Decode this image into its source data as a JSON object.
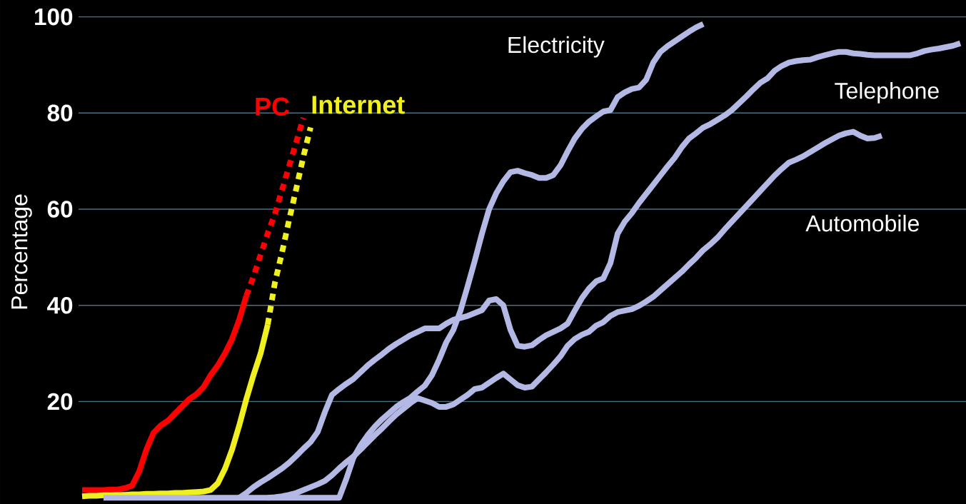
{
  "chart_data": {
    "type": "line",
    "ylabel": "Percentage",
    "categories": [
      null,
      null,
      null,
      null,
      null,
      null,
      null,
      null,
      null,
      null,
      null,
      null,
      null,
      null,
      null,
      null,
      null,
      null,
      null,
      null,
      null,
      null,
      null,
      null,
      null,
      null,
      null,
      null,
      null,
      null,
      null,
      null,
      null,
      null,
      null,
      null,
      null,
      null,
      null,
      null,
      null,
      null,
      null,
      null,
      null,
      null,
      null,
      null,
      null,
      null,
      null,
      null,
      null,
      null,
      null,
      null,
      null,
      null,
      null,
      null,
      null,
      null,
      null,
      null,
      null,
      null,
      null,
      null,
      null,
      null,
      null,
      null,
      null,
      null,
      null,
      null,
      null,
      null,
      null,
      null,
      null,
      null,
      null,
      null,
      null,
      null,
      null,
      null,
      null,
      null,
      null,
      null,
      null,
      null,
      null,
      null,
      null,
      null,
      null,
      null,
      null,
      null,
      null,
      null,
      null,
      null,
      null,
      null,
      null,
      null,
      null,
      null,
      null,
      null,
      null,
      null,
      null,
      null,
      null,
      null,
      null,
      null,
      null,
      null
    ],
    "ylim": [
      -1.3,
      103.5
    ],
    "yticks": [
      20,
      40,
      60,
      80,
      100
    ],
    "grid": "y",
    "tick_labels": "y",
    "series": [
      {
        "color": "#ff0000",
        "line_style": "solid",
        "values": [
          1.6,
          1.6,
          1.6,
          1.6,
          1.7,
          1.7,
          2.0,
          2.5,
          5.5,
          10,
          13.5,
          15,
          16,
          17.5,
          19,
          20.5,
          21.5,
          23,
          25.5,
          27.5,
          30,
          33,
          37,
          42,
          null,
          null,
          null,
          null,
          null,
          null,
          null,
          null,
          null,
          null,
          null,
          null,
          null,
          null,
          null,
          null,
          null,
          null,
          null,
          null,
          null,
          null,
          null,
          null,
          null,
          null,
          null,
          null,
          null,
          null,
          null,
          null,
          null,
          null,
          null,
          null,
          null,
          null,
          null,
          null,
          null,
          null,
          null,
          null,
          null,
          null,
          null,
          null,
          null,
          null,
          null,
          null,
          null,
          null,
          null,
          null,
          null,
          null,
          null,
          null,
          null,
          null,
          null,
          null,
          null,
          null,
          null,
          null,
          null,
          null,
          null,
          null,
          null,
          null,
          null,
          null,
          null,
          null,
          null,
          null,
          null,
          null,
          null,
          null,
          null,
          null,
          null,
          null,
          null,
          null,
          null,
          null,
          null,
          null,
          null,
          null,
          null,
          null,
          null,
          null
        ]
      },
      {
        "name": "PC",
        "color": "#ff0000",
        "line_style": "dashed",
        "values": [
          null,
          null,
          null,
          null,
          null,
          null,
          null,
          null,
          null,
          null,
          null,
          null,
          null,
          null,
          null,
          null,
          null,
          null,
          null,
          null,
          null,
          null,
          null,
          42,
          46,
          50.5,
          55,
          59,
          64,
          69,
          74,
          79,
          null,
          null,
          null,
          null,
          null,
          null,
          null,
          null,
          null,
          null,
          null,
          null,
          null,
          null,
          null,
          null,
          null,
          null,
          null,
          null,
          null,
          null,
          null,
          null,
          null,
          null,
          null,
          null,
          null,
          null,
          null,
          null,
          null,
          null,
          null,
          null,
          null,
          null,
          null,
          null,
          null,
          null,
          null,
          null,
          null,
          null,
          null,
          null,
          null,
          null,
          null,
          null,
          null,
          null,
          null,
          null,
          null,
          null,
          null,
          null,
          null,
          null,
          null,
          null,
          null,
          null,
          null,
          null,
          null,
          null,
          null,
          null,
          null,
          null,
          null,
          null,
          null,
          null,
          null,
          null,
          null,
          null,
          null,
          null,
          null,
          null,
          null,
          null,
          null,
          null,
          null,
          null
        ]
      },
      {
        "color": "#f0f020",
        "line_style": "solid",
        "values": [
          0.3,
          0.4,
          0.4,
          0.5,
          0.5,
          0.6,
          0.6,
          0.7,
          0.7,
          0.8,
          0.8,
          0.9,
          0.9,
          1.0,
          1.0,
          1.1,
          1.2,
          1.3,
          1.6,
          3,
          6,
          10,
          15,
          20.5,
          25.5,
          30,
          36,
          null,
          null,
          null,
          null,
          null,
          null,
          null,
          null,
          null,
          null,
          null,
          null,
          null,
          null,
          null,
          null,
          null,
          null,
          null,
          null,
          null,
          null,
          null,
          null,
          null,
          null,
          null,
          null,
          null,
          null,
          null,
          null,
          null,
          null,
          null,
          null,
          null,
          null,
          null,
          null,
          null,
          null,
          null,
          null,
          null,
          null,
          null,
          null,
          null,
          null,
          null,
          null,
          null,
          null,
          null,
          null,
          null,
          null,
          null,
          null,
          null,
          null,
          null,
          null,
          null,
          null,
          null,
          null,
          null,
          null,
          null,
          null,
          null,
          null,
          null,
          null,
          null,
          null,
          null,
          null,
          null,
          null,
          null,
          null,
          null,
          null,
          null,
          null,
          null,
          null,
          null,
          null,
          null,
          null,
          null,
          null,
          null
        ]
      },
      {
        "name": "Internet",
        "color": "#f0f020",
        "line_style": "dashed",
        "values": [
          null,
          null,
          null,
          null,
          null,
          null,
          null,
          null,
          null,
          null,
          null,
          null,
          null,
          null,
          null,
          null,
          null,
          null,
          null,
          null,
          null,
          null,
          null,
          null,
          null,
          null,
          36,
          44.7,
          51,
          57.8,
          64.3,
          71,
          77,
          null,
          null,
          null,
          null,
          null,
          null,
          null,
          null,
          null,
          null,
          null,
          null,
          null,
          null,
          null,
          null,
          null,
          null,
          null,
          null,
          null,
          null,
          null,
          null,
          null,
          null,
          null,
          null,
          null,
          null,
          null,
          null,
          null,
          null,
          null,
          null,
          null,
          null,
          null,
          null,
          null,
          null,
          null,
          null,
          null,
          null,
          null,
          null,
          null,
          null,
          null,
          null,
          null,
          null,
          null,
          null,
          null,
          null,
          null,
          null,
          null,
          null,
          null,
          null,
          null,
          null,
          null,
          null,
          null,
          null,
          null,
          null,
          null,
          null,
          null,
          null,
          null,
          null,
          null,
          null,
          null,
          null,
          null,
          null,
          null,
          null,
          null,
          null,
          null,
          null,
          null
        ]
      },
      {
        "name": "Electricity",
        "color": "#b4b8e4",
        "line_style": "solid",
        "values": [
          null,
          null,
          null,
          0,
          0,
          0,
          0,
          0,
          0,
          0,
          0,
          0,
          0,
          0,
          0,
          0,
          0,
          0,
          0,
          0,
          0,
          0,
          0,
          0,
          0,
          0,
          0,
          0,
          0,
          0,
          0,
          0,
          0,
          0,
          0,
          0,
          0,
          3.9,
          8.3,
          10.9,
          13,
          14.8,
          16.3,
          17.6,
          18.9,
          19.9,
          20.8,
          22.1,
          23.3,
          25.5,
          28.7,
          32.3,
          34.9,
          38.9,
          44,
          49.3,
          54.9,
          60,
          63.3,
          65.8,
          67.7,
          68,
          67.5,
          67.1,
          66.5,
          66.5,
          67.1,
          69.1,
          72,
          74.7,
          76.7,
          78.2,
          79.3,
          80.3,
          80.6,
          83.3,
          84.3,
          85,
          85.3,
          86.9,
          90.5,
          92.7,
          93.9,
          94.9,
          95.9,
          96.9,
          97.8,
          98.5,
          null,
          null,
          null,
          null,
          null,
          null,
          null,
          null,
          null,
          null,
          null,
          null,
          null,
          null,
          null,
          null,
          null,
          null,
          null,
          null,
          null,
          null,
          null,
          null,
          null,
          null,
          null,
          null,
          null,
          null,
          null,
          null,
          null,
          null,
          null,
          null
        ]
      },
      {
        "name": "Telephone",
        "color": "#b4b8e4",
        "line_style": "solid",
        "values": [
          null,
          null,
          null,
          null,
          null,
          null,
          null,
          null,
          null,
          null,
          null,
          null,
          null,
          null,
          null,
          null,
          null,
          null,
          null,
          null,
          null,
          null,
          0,
          1,
          2.2,
          3.2,
          4.1,
          5.1,
          6.1,
          7.3,
          8.7,
          10.2,
          11.6,
          13.7,
          17.8,
          21.4,
          22.6,
          23.7,
          24.7,
          26.1,
          27.5,
          28.7,
          29.8,
          31,
          32,
          32.9,
          33.8,
          34.5,
          35.2,
          35.2,
          35.2,
          36.2,
          37,
          37.4,
          37.8,
          38.4,
          39,
          41,
          41.3,
          40,
          34.9,
          31.6,
          31.4,
          31.7,
          32.8,
          33.8,
          34.5,
          35.2,
          36.2,
          38.9,
          41.5,
          43.5,
          45,
          45.6,
          48.8,
          54.9,
          57.4,
          59.2,
          61.3,
          63.2,
          65.1,
          67,
          68.9,
          70.7,
          72.9,
          74.7,
          75.8,
          77,
          77.7,
          78.6,
          79.5,
          80.6,
          82,
          83.4,
          84.9,
          86.3,
          87.2,
          88.8,
          89.8,
          90.5,
          90.8,
          91,
          91.1,
          91.6,
          92,
          92.4,
          92.7,
          92.7,
          92.4,
          92.3,
          92.1,
          92,
          92,
          92,
          92,
          92,
          92,
          92.4,
          92.9,
          93.2,
          93.4,
          93.7,
          94,
          94.5
        ]
      },
      {
        "name": "Automobile",
        "color": "#b4b8e4",
        "line_style": "solid",
        "values": [
          null,
          null,
          null,
          null,
          null,
          null,
          null,
          null,
          null,
          null,
          null,
          null,
          null,
          null,
          null,
          null,
          null,
          null,
          null,
          null,
          null,
          null,
          null,
          null,
          null,
          null,
          0,
          0.1,
          0.3,
          0.6,
          1,
          1.6,
          2.2,
          2.8,
          3.5,
          4.7,
          6.1,
          7.4,
          8.6,
          10,
          11.5,
          13,
          14.4,
          15.9,
          17.3,
          18.5,
          19.7,
          20.7,
          20.2,
          19.7,
          18.9,
          18.9,
          19.4,
          20.4,
          21.4,
          22.6,
          22.9,
          23.9,
          24.9,
          25.8,
          24.6,
          23.4,
          22.9,
          23.1,
          24.6,
          26.1,
          27.7,
          29.4,
          31.6,
          33,
          33.9,
          34.5,
          35.8,
          36.5,
          37.8,
          38.6,
          38.9,
          39.2,
          39.9,
          40.8,
          41.8,
          43.1,
          44.4,
          45.7,
          47,
          48.5,
          49.9,
          51.5,
          52.7,
          54.1,
          55.8,
          57.4,
          59,
          60.6,
          62.2,
          63.8,
          65.4,
          67,
          68.4,
          69.7,
          70.3,
          71,
          71.9,
          72.8,
          73.7,
          74.5,
          75.3,
          75.8,
          76.1,
          75.3,
          74.7,
          74.8,
          75.3,
          null,
          null,
          null,
          null,
          null,
          null,
          null,
          null,
          null,
          null,
          null
        ]
      }
    ]
  }
}
